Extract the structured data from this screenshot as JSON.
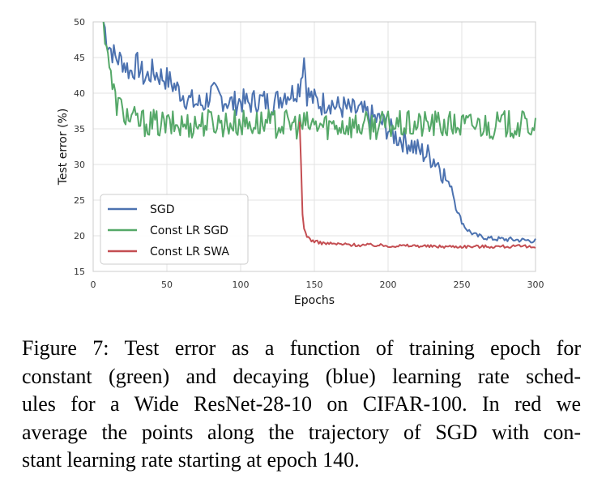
{
  "chart_data": {
    "type": "line",
    "xlabel": "Epochs",
    "ylabel": "Test error (%)",
    "xlim": [
      0,
      300
    ],
    "ylim": [
      15,
      50
    ],
    "xticks": [
      0,
      50,
      100,
      150,
      200,
      250,
      300
    ],
    "yticks": [
      15,
      20,
      25,
      30,
      35,
      40,
      45,
      50
    ],
    "grid": true,
    "legend_position": "lower-left",
    "series": [
      {
        "name": "SGD",
        "color": "#4c72b0",
        "x": [
          7,
          10,
          15,
          20,
          25,
          30,
          35,
          40,
          45,
          50,
          55,
          60,
          65,
          70,
          75,
          80,
          85,
          90,
          95,
          100,
          105,
          110,
          115,
          120,
          125,
          130,
          135,
          140,
          143,
          145,
          150,
          155,
          160,
          165,
          170,
          175,
          180,
          185,
          190,
          195,
          200,
          205,
          210,
          215,
          220,
          225,
          230,
          235,
          240,
          243,
          246,
          250,
          253,
          256,
          260,
          265,
          270,
          280,
          290,
          300
        ],
        "y": [
          50,
          47,
          45,
          44.5,
          43,
          44,
          42,
          43,
          42.5,
          42,
          41,
          40,
          39,
          38.5,
          38.5,
          40,
          39.5,
          39,
          38.5,
          39,
          38.5,
          39,
          39,
          38.5,
          39,
          40,
          40,
          41,
          45,
          40,
          39,
          38.5,
          39,
          38,
          38,
          37.5,
          37.5,
          37,
          36.5,
          36,
          35,
          34,
          33.5,
          33,
          32,
          31.5,
          31,
          30,
          27.5,
          27,
          24,
          22,
          21,
          20.5,
          20,
          19.8,
          19.6,
          19.5,
          19.4,
          19.3
        ]
      },
      {
        "name": "Const LR SGD",
        "color": "#55a868",
        "x": [
          7,
          10,
          12,
          15,
          20,
          25,
          30,
          40,
          50,
          60,
          70,
          80,
          90,
          100,
          110,
          120,
          130,
          140,
          150,
          160,
          170,
          180,
          190,
          200,
          210,
          220,
          230,
          240,
          250,
          260,
          270,
          280,
          290,
          300
        ],
        "y": [
          50,
          46,
          42,
          39,
          37.5,
          36.5,
          36,
          35.8,
          35.5,
          35.5,
          35.7,
          36,
          35.8,
          35.8,
          35.8,
          35.7,
          35.7,
          35.5,
          35.5,
          35.5,
          35.6,
          35.5,
          35.5,
          35.6,
          35.5,
          35.5,
          35.7,
          35.5,
          35.5,
          35.6,
          35.5,
          35.6,
          35.5,
          35.6
        ]
      },
      {
        "name": "Const LR SWA",
        "color": "#c44e52",
        "x": [
          140,
          141,
          142,
          143,
          145,
          147,
          150,
          155,
          160,
          170,
          180,
          190,
          200,
          210,
          220,
          230,
          240,
          250,
          260,
          270,
          280,
          290,
          300
        ],
        "y": [
          36,
          30,
          23,
          21,
          20,
          19.5,
          19.2,
          19,
          18.9,
          18.8,
          18.7,
          18.7,
          18.6,
          18.6,
          18.6,
          18.5,
          18.5,
          18.5,
          18.5,
          18.5,
          18.5,
          18.5,
          18.4
        ]
      }
    ]
  },
  "caption": [
    "Figure 7: Test error as a function of training epoch for",
    "constant (green) and decaying (blue) learning rate sched-",
    "ules for a Wide ResNet-28-10 on CIFAR-100. In red we",
    "average the points along the trajectory of SGD with con-",
    "stant learning rate starting at epoch 140."
  ]
}
